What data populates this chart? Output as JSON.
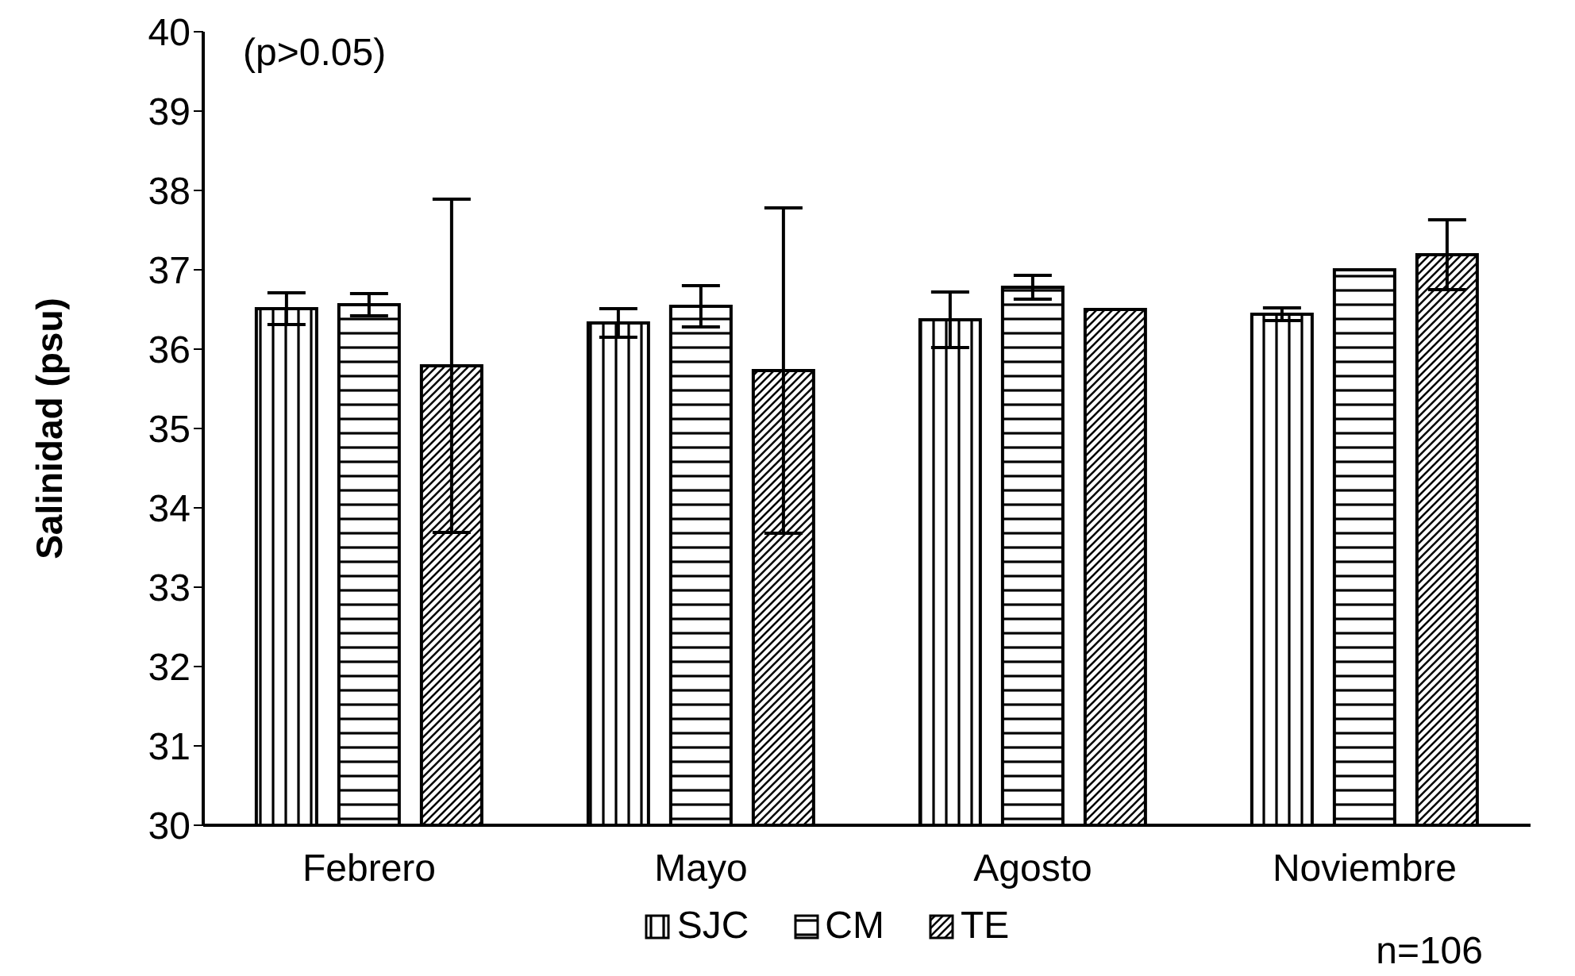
{
  "chart_data": {
    "type": "bar",
    "ylabel": "Salinidad (psu)",
    "categories": [
      "Febrero",
      "Mayo",
      "Agosto",
      "Noviembre"
    ],
    "series": [
      {
        "name": "SJC",
        "color": "#000000",
        "values": [
          36.51,
          36.33,
          36.37,
          36.44
        ],
        "errors": [
          0.2,
          0.18,
          0.35,
          0.08
        ]
      },
      {
        "name": "CM",
        "color": "#000000",
        "values": [
          36.56,
          36.54,
          36.78,
          37.0
        ],
        "errors": [
          0.14,
          0.26,
          0.15,
          null
        ]
      },
      {
        "name": "TE",
        "color": "#000000",
        "values": [
          35.79,
          35.73,
          36.5,
          37.19
        ],
        "errors": [
          2.1,
          2.05,
          null,
          0.44
        ]
      }
    ],
    "ylim": [
      30,
      40
    ],
    "yticks": [
      30,
      31,
      32,
      33,
      34,
      35,
      36,
      37,
      38,
      39,
      40
    ],
    "grid": false,
    "legend": "bottom",
    "annotations": [
      "(p>0.05)",
      "n=106"
    ]
  }
}
